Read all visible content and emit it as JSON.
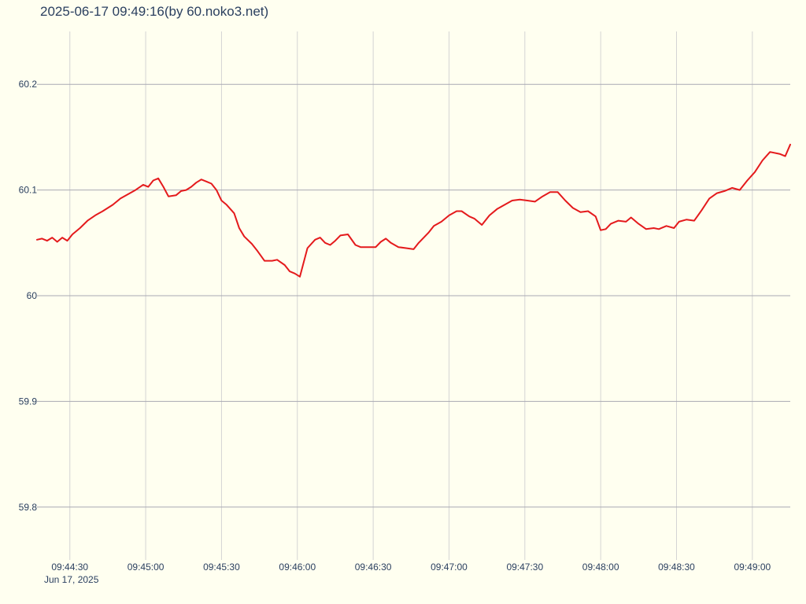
{
  "chart_data": {
    "type": "line",
    "title": "2025-06-17 09:49:16(by 60.noko3.net)",
    "xlabel": "",
    "ylabel": "",
    "x_tick_labels": [
      "09:44:30",
      "09:45:00",
      "09:45:30",
      "09:46:00",
      "09:46:30",
      "09:47:00",
      "09:47:30",
      "09:48:00",
      "09:48:30",
      "09:49:00"
    ],
    "x_date_label": "Jun 17, 2025",
    "y_tick_labels": [
      "60.2",
      "60.1",
      "60",
      "59.9",
      "59.8"
    ],
    "y_tick_values": [
      60.2,
      60.1,
      60.0,
      59.9,
      59.8
    ],
    "xlim": [
      "09:44:17",
      "09:49:15"
    ],
    "ylim": [
      59.75,
      60.25
    ],
    "grid": true,
    "legend": "none",
    "colors": {
      "background": "#fffff0",
      "line": "#e41a1c",
      "text": "#2a3f5f"
    },
    "series": [
      {
        "color": "#e41a1c",
        "x": [
          "09:44:17",
          "09:44:19",
          "09:44:21",
          "09:44:23",
          "09:44:25",
          "09:44:27",
          "09:44:29",
          "09:44:31",
          "09:44:34",
          "09:44:37",
          "09:44:40",
          "09:44:43",
          "09:44:47",
          "09:44:50",
          "09:44:53",
          "09:44:56",
          "09:44:59",
          "09:45:01",
          "09:45:03",
          "09:45:05",
          "09:45:07",
          "09:45:09",
          "09:45:12",
          "09:45:14",
          "09:45:16",
          "09:45:18",
          "09:45:20",
          "09:45:22",
          "09:45:24",
          "09:45:26",
          "09:45:28",
          "09:45:30",
          "09:45:32",
          "09:45:35",
          "09:45:37",
          "09:45:39",
          "09:45:42",
          "09:45:44",
          "09:45:47",
          "09:45:50",
          "09:45:52",
          "09:45:55",
          "09:45:57",
          "09:45:59",
          "09:46:01",
          "09:46:04",
          "09:46:07",
          "09:46:09",
          "09:46:11",
          "09:46:13",
          "09:46:15",
          "09:46:17",
          "09:46:20",
          "09:46:23",
          "09:46:25",
          "09:46:28",
          "09:46:31",
          "09:46:33",
          "09:46:35",
          "09:46:37",
          "09:46:40",
          "09:46:43",
          "09:46:46",
          "09:46:48",
          "09:46:52",
          "09:46:54",
          "09:46:57",
          "09:47:00",
          "09:47:03",
          "09:47:05",
          "09:47:08",
          "09:47:10",
          "09:47:13",
          "09:47:16",
          "09:47:19",
          "09:47:22",
          "09:47:25",
          "09:47:28",
          "09:47:31",
          "09:47:34",
          "09:47:37",
          "09:47:40",
          "09:47:43",
          "09:47:46",
          "09:47:49",
          "09:47:52",
          "09:47:55",
          "09:47:58",
          "09:48:00",
          "09:48:02",
          "09:48:04",
          "09:48:07",
          "09:48:10",
          "09:48:12",
          "09:48:15",
          "09:48:18",
          "09:48:21",
          "09:48:23",
          "09:48:26",
          "09:48:29",
          "09:48:31",
          "09:48:34",
          "09:48:37",
          "09:48:40",
          "09:48:43",
          "09:48:46",
          "09:48:49",
          "09:48:52",
          "09:48:55",
          "09:48:58",
          "09:49:01",
          "09:49:04",
          "09:49:07",
          "09:49:11",
          "09:49:13",
          "09:49:15"
        ],
        "y": [
          60.053,
          60.054,
          60.052,
          60.055,
          60.051,
          60.055,
          60.052,
          60.058,
          60.064,
          60.071,
          60.076,
          60.08,
          60.086,
          60.092,
          60.096,
          60.1,
          60.105,
          60.103,
          60.109,
          60.111,
          60.103,
          60.094,
          60.095,
          60.099,
          60.1,
          60.103,
          60.107,
          60.11,
          60.108,
          60.106,
          60.1,
          60.09,
          60.086,
          60.078,
          60.064,
          60.056,
          60.049,
          60.043,
          60.033,
          60.033,
          60.034,
          60.029,
          60.023,
          60.021,
          60.018,
          60.045,
          60.053,
          60.055,
          60.05,
          60.048,
          60.052,
          60.057,
          60.058,
          60.048,
          60.046,
          60.046,
          60.046,
          60.051,
          60.054,
          60.05,
          60.046,
          60.045,
          60.044,
          60.05,
          60.06,
          60.066,
          60.07,
          60.076,
          60.08,
          60.08,
          60.075,
          60.073,
          60.067,
          60.076,
          60.082,
          60.086,
          60.09,
          60.091,
          60.09,
          60.089,
          60.094,
          60.098,
          60.098,
          60.09,
          60.083,
          60.079,
          60.08,
          60.075,
          60.062,
          60.063,
          60.068,
          60.071,
          60.07,
          60.074,
          60.068,
          60.063,
          60.064,
          60.063,
          60.066,
          60.064,
          60.07,
          60.072,
          60.071,
          60.081,
          60.092,
          60.097,
          60.099,
          60.102,
          60.1,
          60.109,
          60.117,
          60.128,
          60.136,
          60.134,
          60.132,
          60.143
        ]
      }
    ]
  }
}
